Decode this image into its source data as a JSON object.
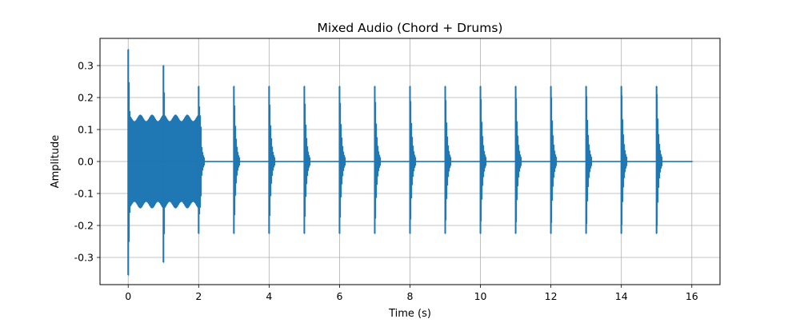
{
  "chart_data": {
    "type": "line",
    "title": "Mixed Audio (Chord + Drums)",
    "xlabel": "Time (s)",
    "ylabel": "Amplitude",
    "xlim": [
      -0.8,
      16.8
    ],
    "ylim": [
      -0.385,
      0.385
    ],
    "x_ticks": [
      0,
      2,
      4,
      6,
      8,
      10,
      12,
      14,
      16
    ],
    "y_ticks": [
      -0.3,
      -0.2,
      -0.1,
      0.0,
      0.1,
      0.2,
      0.3
    ],
    "grid": true,
    "legend": "none",
    "series": [
      {
        "color": "#1f77b4",
        "x_range": [
          0,
          16
        ],
        "chord_section": {
          "x_range": [
            0,
            2.1
          ],
          "envelope": 0.145,
          "beats_per_second": 3
        },
        "drum_hits": [
          {
            "t": 0,
            "max": 0.35,
            "min": -0.355
          },
          {
            "t": 1,
            "max": 0.3,
            "min": -0.315
          },
          {
            "t": 2,
            "max": 0.235,
            "min": -0.225
          },
          {
            "t": 3,
            "max": 0.235,
            "min": -0.225
          },
          {
            "t": 4,
            "max": 0.235,
            "min": -0.225
          },
          {
            "t": 5,
            "max": 0.235,
            "min": -0.225
          },
          {
            "t": 6,
            "max": 0.235,
            "min": -0.225
          },
          {
            "t": 7,
            "max": 0.235,
            "min": -0.225
          },
          {
            "t": 8,
            "max": 0.235,
            "min": -0.225
          },
          {
            "t": 9,
            "max": 0.235,
            "min": -0.225
          },
          {
            "t": 10,
            "max": 0.235,
            "min": -0.225
          },
          {
            "t": 11,
            "max": 0.235,
            "min": -0.225
          },
          {
            "t": 12,
            "max": 0.235,
            "min": -0.225
          },
          {
            "t": 13,
            "max": 0.235,
            "min": -0.225
          },
          {
            "t": 14,
            "max": 0.235,
            "min": -0.225
          },
          {
            "t": 15,
            "max": 0.235,
            "min": -0.225
          }
        ]
      }
    ]
  }
}
